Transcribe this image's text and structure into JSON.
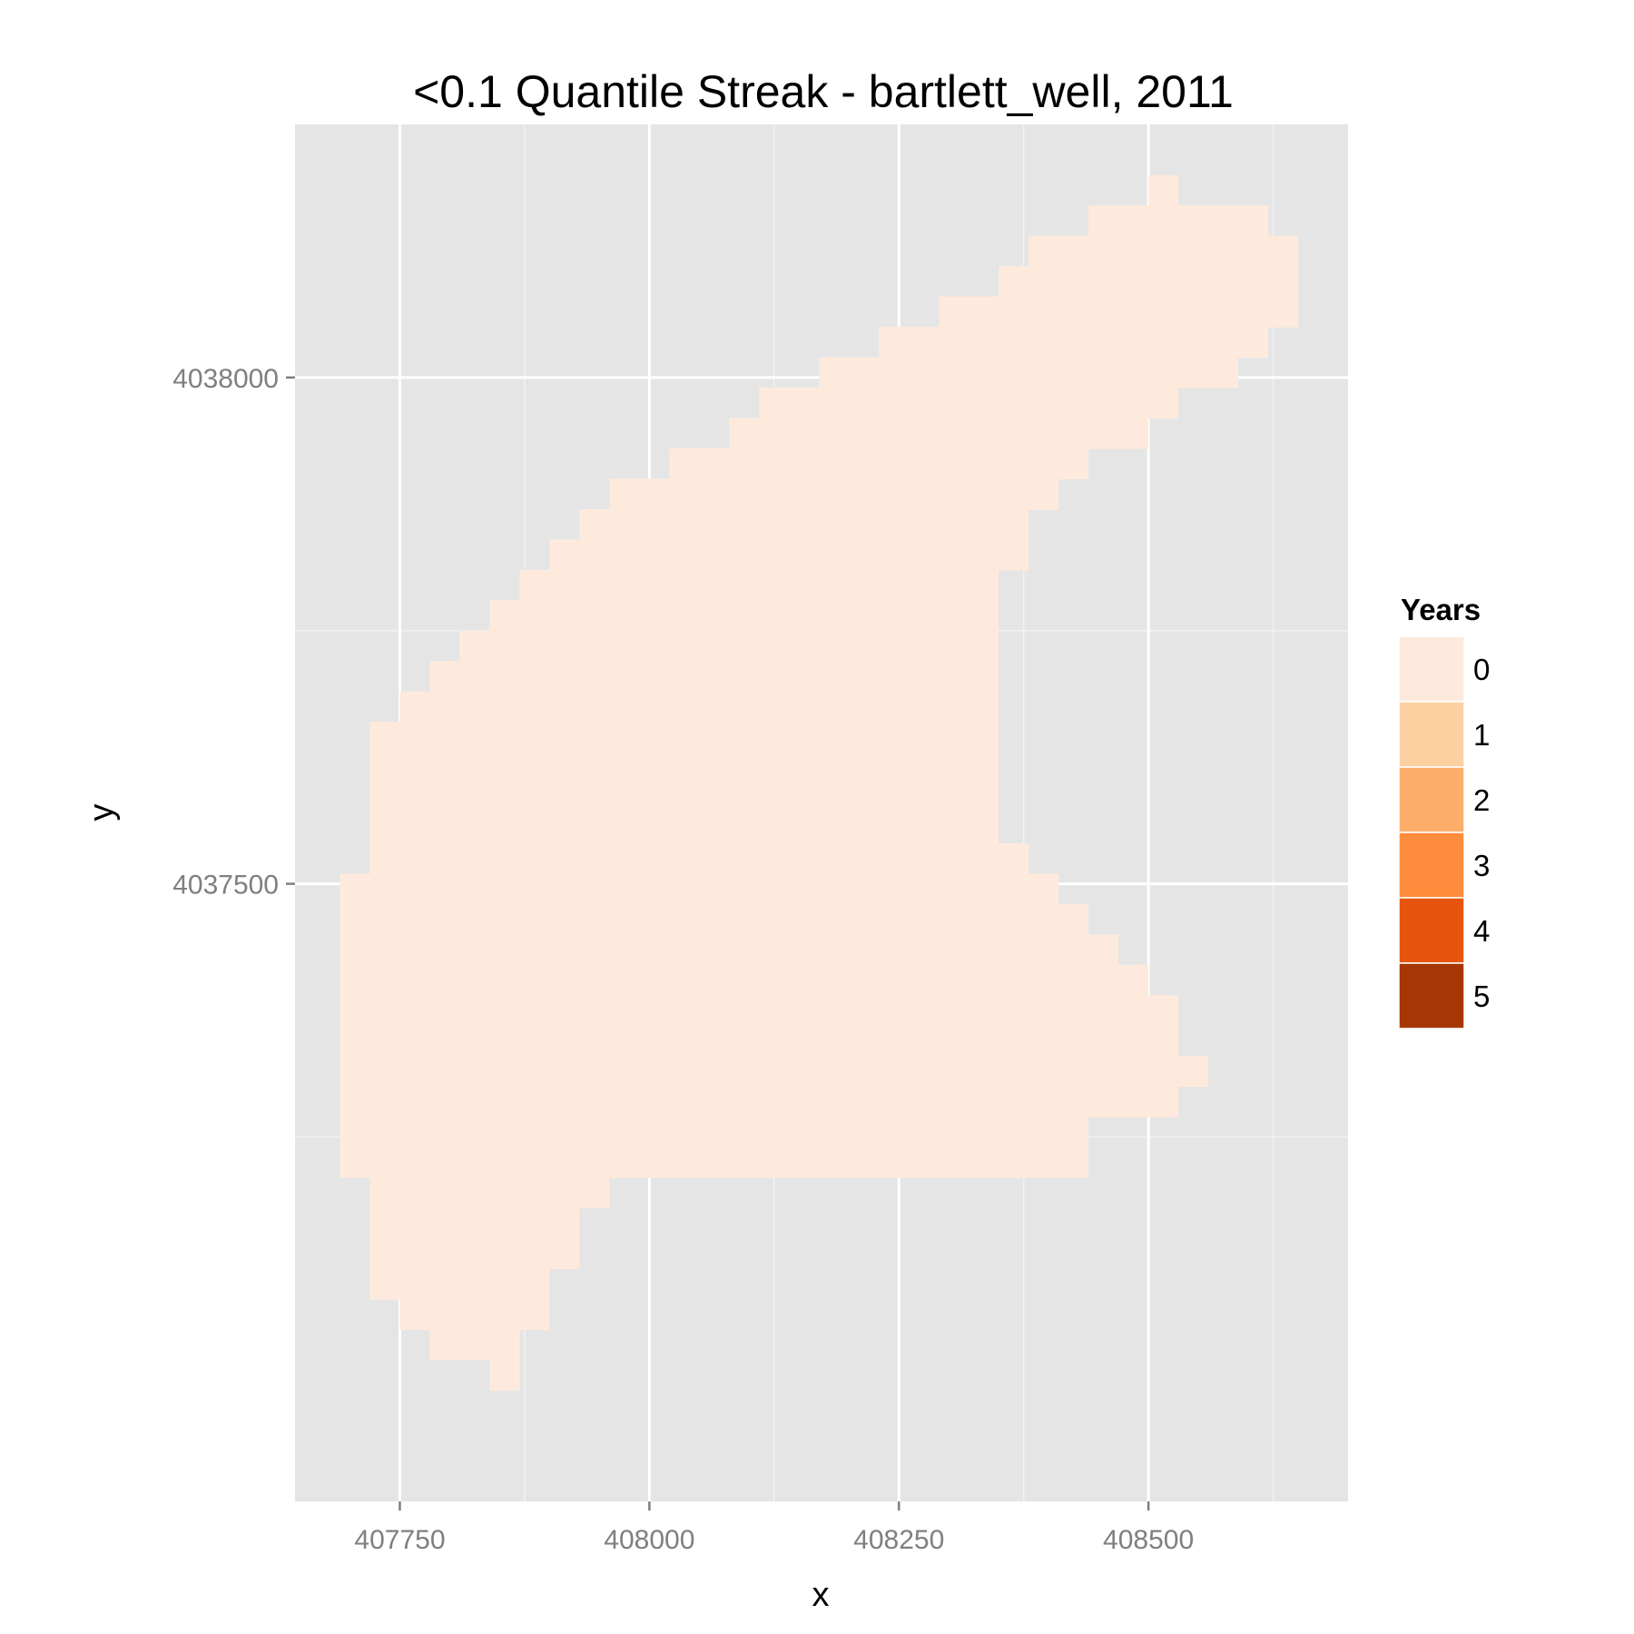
{
  "chart_data": {
    "type": "heatmap",
    "title": "<0.1 Quantile Streak - bartlett_well, 2011",
    "xlabel": "x",
    "ylabel": "y",
    "xlim": [
      407645,
      408700
    ],
    "ylim": [
      4036890,
      4038250
    ],
    "x_ticks": [
      407750,
      408000,
      408250,
      408500
    ],
    "x_tick_labels": [
      "407750",
      "408000",
      "408250",
      "408500"
    ],
    "y_ticks": [
      4037500,
      4038000
    ],
    "y_tick_labels": [
      "4037500",
      "4038000"
    ],
    "x_minor_ticks": [
      407875,
      408125,
      408375,
      408625
    ],
    "y_minor_ticks": [
      4037250,
      4037750
    ],
    "grid": true,
    "panel_background": "#e5e5e5",
    "legend": {
      "title": "Years",
      "placement": "right",
      "levels": [
        {
          "label": "0",
          "color": "#feeadc"
        },
        {
          "label": "1",
          "color": "#fdd0a2"
        },
        {
          "label": "2",
          "color": "#fdae6b"
        },
        {
          "label": "3",
          "color": "#fd8d3c"
        },
        {
          "label": "4",
          "color": "#e6550d"
        },
        {
          "label": "5",
          "color": "#a63603"
        }
      ]
    },
    "cell_value": 0,
    "cell_size": 30,
    "cell_rows": [
      {
        "y": 4038185,
        "x_from": 408500,
        "x_to": 408530
      },
      {
        "y": 4038155,
        "x_from": 408440,
        "x_to": 408620
      },
      {
        "y": 4038125,
        "x_from": 408380,
        "x_to": 408650
      },
      {
        "y": 4038095,
        "x_from": 408350,
        "x_to": 408650
      },
      {
        "y": 4038065,
        "x_from": 408290,
        "x_to": 408650
      },
      {
        "y": 4038035,
        "x_from": 408230,
        "x_to": 408620
      },
      {
        "y": 4038005,
        "x_from": 408170,
        "x_to": 408590
      },
      {
        "y": 4037975,
        "x_from": 408110,
        "x_to": 408530
      },
      {
        "y": 4037945,
        "x_from": 408080,
        "x_to": 408500
      },
      {
        "y": 4037915,
        "x_from": 408020,
        "x_to": 408440
      },
      {
        "y": 4037885,
        "x_from": 407960,
        "x_to": 408410
      },
      {
        "y": 4037855,
        "x_from": 407930,
        "x_to": 408380
      },
      {
        "y": 4037825,
        "x_from": 407900,
        "x_to": 408380
      },
      {
        "y": 4037795,
        "x_from": 407870,
        "x_to": 408350
      },
      {
        "y": 4037765,
        "x_from": 407840,
        "x_to": 408350
      },
      {
        "y": 4037735,
        "x_from": 407810,
        "x_to": 408350
      },
      {
        "y": 4037705,
        "x_from": 407780,
        "x_to": 408350
      },
      {
        "y": 4037675,
        "x_from": 407750,
        "x_to": 408350
      },
      {
        "y": 4037645,
        "x_from": 407720,
        "x_to": 408350
      },
      {
        "y": 4037615,
        "x_from": 407720,
        "x_to": 408350
      },
      {
        "y": 4037585,
        "x_from": 407720,
        "x_to": 408350
      },
      {
        "y": 4037555,
        "x_from": 407720,
        "x_to": 408350
      },
      {
        "y": 4037525,
        "x_from": 407720,
        "x_to": 408380
      },
      {
        "y": 4037495,
        "x_from": 407690,
        "x_to": 408410
      },
      {
        "y": 4037465,
        "x_from": 407690,
        "x_to": 408440
      },
      {
        "y": 4037435,
        "x_from": 407690,
        "x_to": 408470
      },
      {
        "y": 4037405,
        "x_from": 407690,
        "x_to": 408500
      },
      {
        "y": 4037375,
        "x_from": 407690,
        "x_to": 408530
      },
      {
        "y": 4037345,
        "x_from": 407690,
        "x_to": 408530
      },
      {
        "y": 4037315,
        "x_from": 407690,
        "x_to": 408560
      },
      {
        "y": 4037285,
        "x_from": 407690,
        "x_to": 408530
      },
      {
        "y": 4037255,
        "x_from": 407690,
        "x_to": 408440
      },
      {
        "y": 4037225,
        "x_from": 407690,
        "x_to": 408440
      },
      {
        "y": 4037195,
        "x_from": 407720,
        "x_to": 407960
      },
      {
        "y": 4037165,
        "x_from": 407720,
        "x_to": 407930
      },
      {
        "y": 4037135,
        "x_from": 407720,
        "x_to": 407930
      },
      {
        "y": 4037105,
        "x_from": 407720,
        "x_to": 407900
      },
      {
        "y": 4037075,
        "x_from": 407750,
        "x_to": 407900
      },
      {
        "y": 4037045,
        "x_from": 407780,
        "x_to": 407870
      },
      {
        "y": 4037015,
        "x_from": 407840,
        "x_to": 407870
      }
    ]
  }
}
